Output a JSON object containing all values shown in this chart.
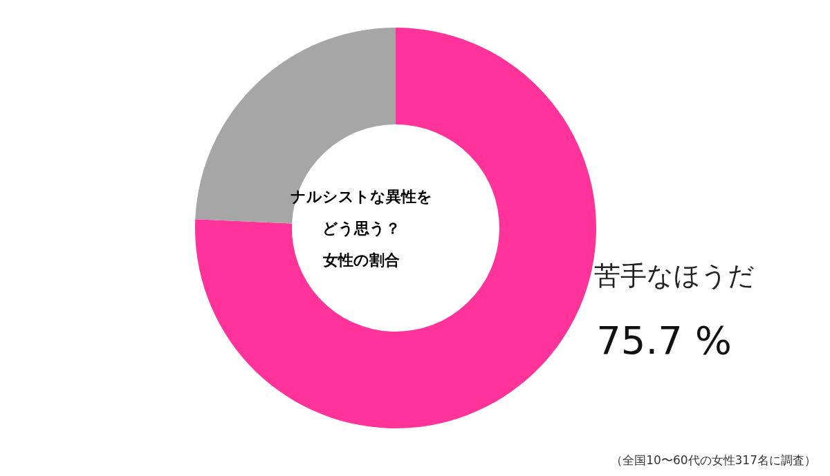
{
  "chart_data": {
    "type": "donut",
    "title": "ナルシストな異性をどう思う？",
    "subtitle": "女性の割合",
    "categories": [
      "苦手なほうだ",
      null
    ],
    "values": [
      75.7,
      24.3
    ],
    "colors": [
      "#ff3399",
      "#a6a6a6"
    ],
    "value_labels": [
      "75.7 %",
      null
    ],
    "annotations": [
      "（全国10〜60代の女性317名に調査）"
    ]
  }
}
